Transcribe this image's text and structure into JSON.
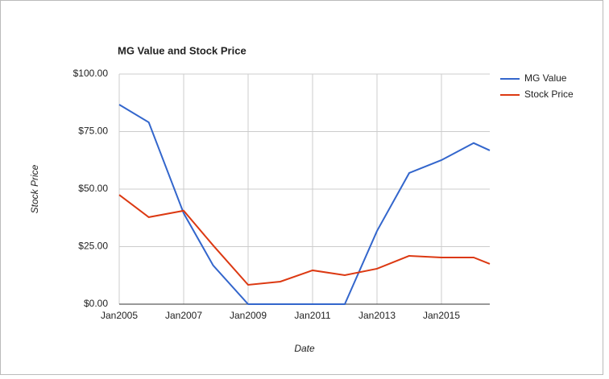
{
  "chart_data": {
    "type": "line",
    "title": "MG Value and Stock Price",
    "x_label": "Date",
    "y_label": "Stock Price",
    "x": [
      "2005-01",
      "2005-12",
      "2007-01",
      "2007-12",
      "2009-01",
      "2010-01",
      "2011-01",
      "2012-01",
      "2013-01",
      "2014-01",
      "2015-01",
      "2016-01",
      "2016-07"
    ],
    "series": [
      {
        "name": "MG Value",
        "color": "#3366cc",
        "values": [
          86.7,
          79,
          39.5,
          16.8,
          0,
          0,
          0,
          0,
          31.8,
          57,
          62.6,
          70,
          66.8
        ]
      },
      {
        "name": "Stock Price",
        "color": "#dc3912",
        "values": [
          47.5,
          37.8,
          40.6,
          25.5,
          8.4,
          9.8,
          14.7,
          12.6,
          15.4,
          21,
          20.3,
          20.3,
          17.5
        ]
      }
    ],
    "xlim": [
      "2005-01",
      "2016-07"
    ],
    "xticks": [
      {
        "value": "2005-01",
        "label": "Jan2005"
      },
      {
        "value": "2007-01",
        "label": "Jan2007"
      },
      {
        "value": "2009-01",
        "label": "Jan2009"
      },
      {
        "value": "2011-01",
        "label": "Jan2011"
      },
      {
        "value": "2013-01",
        "label": "Jan2013"
      },
      {
        "value": "2015-01",
        "label": "Jan2015"
      }
    ],
    "ylim": [
      0,
      100
    ],
    "yticks": [
      {
        "value": 0,
        "label": "$0.00"
      },
      {
        "value": 25,
        "label": "$25.00"
      },
      {
        "value": 50,
        "label": "$50.00"
      },
      {
        "value": 75,
        "label": "$75.00"
      },
      {
        "value": 100,
        "label": "$100.00"
      }
    ],
    "grid": true,
    "legend": "right"
  }
}
